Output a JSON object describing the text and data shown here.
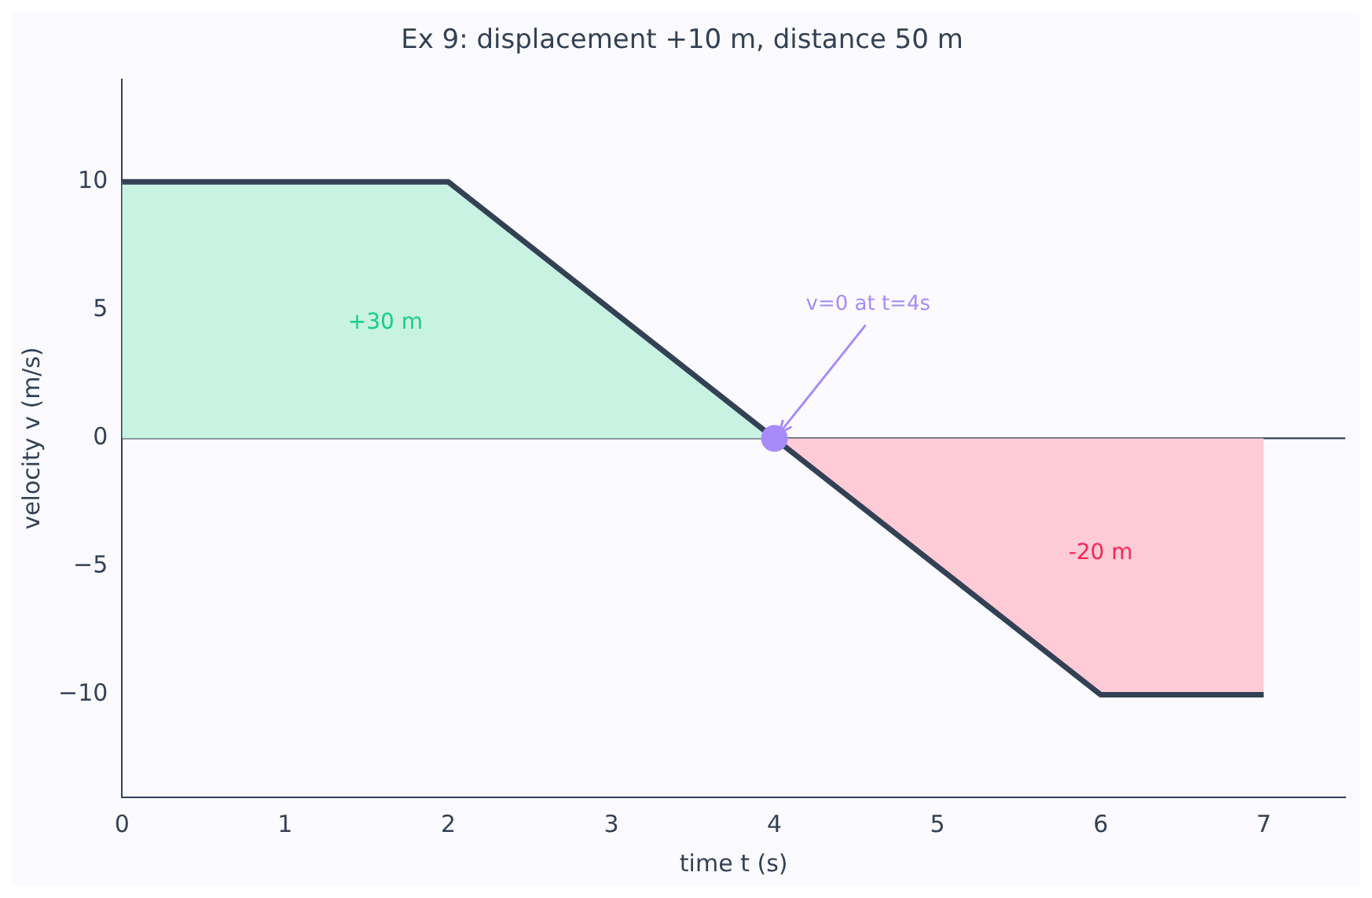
{
  "chart_data": {
    "type": "line",
    "title": "Ex 9: displacement +10 m, distance 50 m",
    "xlabel": "time t (s)",
    "ylabel": "velocity v (m/s)",
    "series": [
      {
        "type": "area",
        "color": "#c8f3e3",
        "x": [
          0,
          2,
          4
        ],
        "values": [
          10,
          10,
          0
        ]
      },
      {
        "type": "area",
        "color": "#fecbd6",
        "x": [
          4,
          6,
          7
        ],
        "values": [
          0,
          -10,
          -10
        ]
      },
      {
        "color": "#334155",
        "x": [
          0,
          2,
          4,
          6,
          7
        ],
        "values": [
          10,
          10,
          0,
          -10,
          -10
        ]
      },
      {
        "type": "scatter",
        "color": "#a78bfa",
        "marker": "circle",
        "x": [
          4
        ],
        "values": [
          0
        ]
      }
    ],
    "xlim": [
      0,
      7.5
    ],
    "xticks": [
      0,
      1,
      2,
      3,
      4,
      5,
      6,
      7
    ],
    "ylim": [
      -14,
      14
    ],
    "yticks": [
      {
        "value": -10,
        "label": "−10"
      },
      {
        "value": -5,
        "label": "−5"
      },
      0,
      5,
      10
    ],
    "ref_lines": [
      {
        "axis": "y",
        "value": 0,
        "color": "#334155"
      }
    ],
    "annotations": [
      "+30 m",
      "-20 m",
      {
        "text": "v=0 at t=4s",
        "x": 4,
        "y": 0
      }
    ],
    "grid": false,
    "legend": false,
    "marker": "none",
    "line_style": "solid"
  }
}
